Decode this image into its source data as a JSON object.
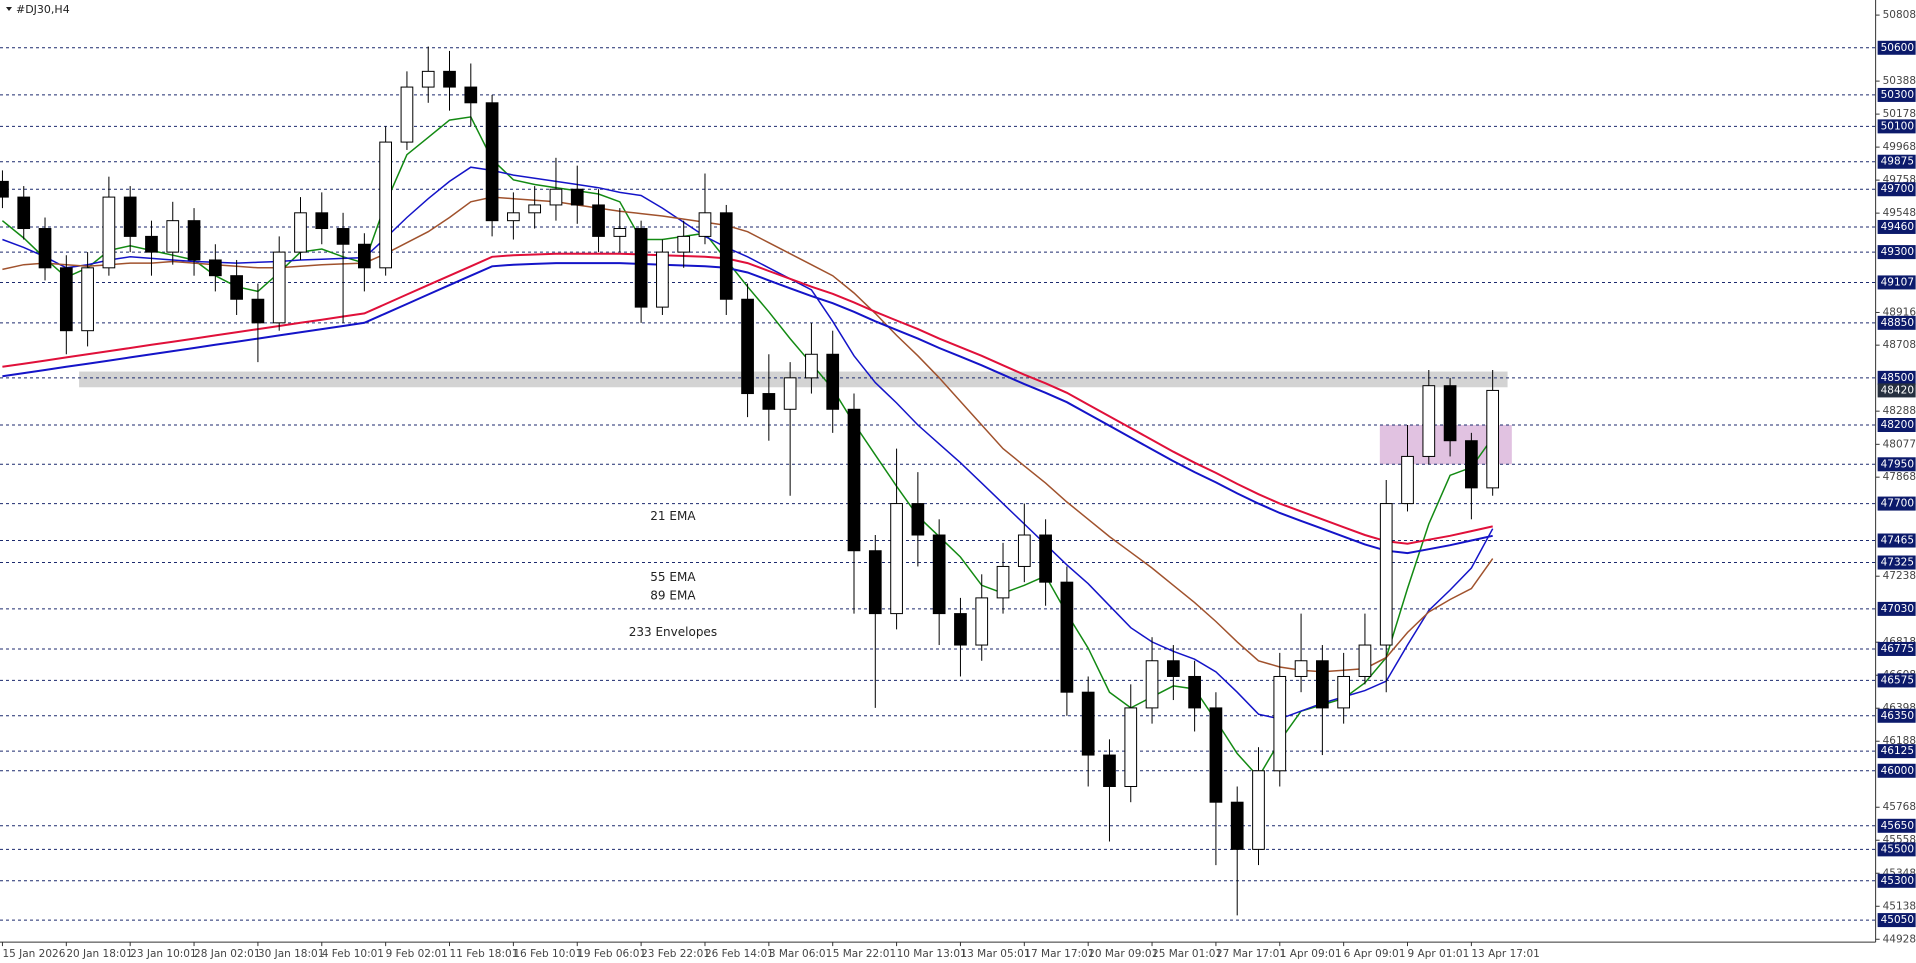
{
  "chart_data": {
    "type": "candlestick",
    "title": "#DJ30,H4",
    "ylim": [
      44910,
      50904
    ],
    "yticks": [
      50808,
      50388,
      50178,
      49968,
      49758,
      49548,
      48916,
      48708,
      48288,
      48077,
      47868,
      47238,
      46818,
      46608,
      46398,
      46188,
      45768,
      45558,
      45348,
      45138,
      44928
    ],
    "levels": [
      50600,
      50300,
      50100,
      49875,
      49700,
      49460,
      49300,
      49107,
      48850,
      48500,
      48200,
      47950,
      47700,
      47465,
      47325,
      47030,
      46775,
      46575,
      46350,
      46125,
      46000,
      45650,
      45500,
      45300,
      45050
    ],
    "last_price": 48420,
    "x_labels": [
      "15 Jan 2026",
      "20 Jan 18:01",
      "23 Jan 10:01",
      "28 Jan 02:01",
      "30 Jan 18:01",
      "4 Feb 10:01",
      "9 Feb 02:01",
      "11 Feb 18:01",
      "16 Feb 10:01",
      "19 Feb 06:01",
      "23 Feb 22:01",
      "26 Feb 14:01",
      "3 Mar 06:01",
      "5 Mar 22:01",
      "10 Mar 13:01",
      "13 Mar 05:01",
      "17 Mar 17:01",
      "20 Mar 09:01",
      "25 Mar 01:01",
      "27 Mar 17:01",
      "1 Apr 09:01",
      "6 Apr 09:01",
      "9 Apr 01:01",
      "13 Apr 17:01"
    ],
    "open": [
      49750,
      49650,
      49450,
      49200,
      48800,
      49200,
      49650,
      49400,
      49300,
      49500,
      49250,
      49150,
      49000,
      48850,
      49300,
      49550,
      49450,
      49350,
      49200,
      50000,
      50350,
      50450,
      50350,
      50250,
      49500,
      49550,
      49600,
      49700,
      49600,
      49400,
      49450,
      48950,
      49300,
      49400,
      49550,
      49000,
      48400,
      48300,
      48500,
      48650,
      48300,
      47400,
      47000,
      47700,
      47500,
      47000,
      46800,
      47100,
      47300,
      47500,
      47200,
      46500,
      46100,
      45900,
      46400,
      46700,
      46600,
      46400,
      45800,
      45500,
      46000,
      46600,
      46700,
      46400,
      46600,
      46800,
      47700,
      48000,
      48450,
      48100,
      47800
    ],
    "high": [
      49820,
      49720,
      49520,
      49280,
      49300,
      49780,
      49720,
      49500,
      49620,
      49580,
      49350,
      49250,
      49100,
      49400,
      49650,
      49680,
      49550,
      49420,
      50100,
      50450,
      50608,
      50580,
      50500,
      50300,
      49680,
      49720,
      49900,
      49850,
      49700,
      49580,
      49500,
      49380,
      49500,
      49800,
      49600,
      49100,
      48650,
      48600,
      48850,
      48800,
      48400,
      47500,
      48050,
      47900,
      47600,
      47100,
      47250,
      47450,
      47700,
      47600,
      47300,
      46600,
      46200,
      46550,
      46850,
      46800,
      46700,
      46500,
      45900,
      46150,
      46750,
      47000,
      46800,
      46750,
      47000,
      47850,
      48200,
      48550,
      48500,
      48150,
      48550
    ],
    "low": [
      49580,
      49380,
      49120,
      48650,
      48700,
      49150,
      49300,
      49150,
      49220,
      49150,
      49050,
      48900,
      48600,
      48800,
      49250,
      49350,
      48850,
      49050,
      49150,
      49950,
      50250,
      50200,
      50100,
      49400,
      49380,
      49450,
      49500,
      49480,
      49300,
      49300,
      48850,
      48900,
      49200,
      49350,
      48900,
      48250,
      48100,
      47750,
      48400,
      48150,
      47000,
      46400,
      46900,
      47300,
      46800,
      46600,
      46700,
      47000,
      47200,
      47050,
      46350,
      45900,
      45550,
      45800,
      46300,
      46450,
      46250,
      45400,
      45080,
      45400,
      45900,
      46500,
      46100,
      46300,
      46550,
      46500,
      47650,
      47950,
      48000,
      47600,
      47750
    ],
    "close": [
      49650,
      49450,
      49200,
      48800,
      49200,
      49650,
      49400,
      49300,
      49500,
      49250,
      49150,
      49000,
      48850,
      49300,
      49550,
      49450,
      49350,
      49200,
      50000,
      50350,
      50450,
      50350,
      50250,
      49500,
      49550,
      49600,
      49700,
      49600,
      49400,
      49450,
      48950,
      49300,
      49400,
      49550,
      49000,
      48400,
      48300,
      48500,
      48650,
      48300,
      47400,
      47000,
      47700,
      47500,
      47000,
      46800,
      47100,
      47300,
      47500,
      47200,
      46500,
      46100,
      45900,
      46400,
      46700,
      46600,
      46400,
      45800,
      45500,
      46000,
      46600,
      46700,
      46400,
      46600,
      46800,
      47700,
      48000,
      48450,
      48100,
      47800,
      48420
    ],
    "series": [
      {
        "name": "21 EMA",
        "color": "#138a13",
        "values": [
          49500,
          49390,
          49260,
          49140,
          49200,
          49310,
          49340,
          49310,
          49280,
          49250,
          49150,
          49080,
          49050,
          49170,
          49300,
          49320,
          49270,
          49230,
          49610,
          49920,
          50030,
          50140,
          50160,
          49890,
          49760,
          49730,
          49710,
          49690,
          49670,
          49620,
          49380,
          49380,
          49400,
          49420,
          49250,
          49080,
          48920,
          48750,
          48590,
          48430,
          48210,
          48010,
          47810,
          47620,
          47490,
          47360,
          47180,
          47130,
          47180,
          47240,
          47000,
          46780,
          46500,
          46400,
          46470,
          46540,
          46520,
          46320,
          46110,
          45960,
          46190,
          46380,
          46420,
          46460,
          46560,
          46720,
          47160,
          47570,
          47880,
          47930,
          48120
        ]
      },
      {
        "name": "55 EMA",
        "color": "#1414c8",
        "values": [
          49380,
          49330,
          49270,
          49200,
          49220,
          49250,
          49270,
          49260,
          49250,
          49240,
          49235,
          49230,
          49235,
          49240,
          49250,
          49255,
          49260,
          49265,
          49390,
          49520,
          49640,
          49750,
          49840,
          49820,
          49790,
          49770,
          49750,
          49730,
          49710,
          49680,
          49660,
          49580,
          49490,
          49400,
          49330,
          49270,
          49200,
          49130,
          49060,
          48860,
          48640,
          48470,
          48340,
          48200,
          48080,
          47960,
          47830,
          47700,
          47570,
          47440,
          47310,
          47190,
          47050,
          46910,
          46820,
          46760,
          46710,
          46630,
          46500,
          46360,
          46330,
          46380,
          46430,
          46470,
          46510,
          46570,
          46800,
          47020,
          47150,
          47290,
          47540
        ]
      },
      {
        "name": "89 EMA",
        "color": "#a0522d",
        "values": [
          49190,
          49220,
          49230,
          49220,
          49210,
          49220,
          49230,
          49230,
          49240,
          49230,
          49220,
          49210,
          49200,
          49200,
          49210,
          49220,
          49225,
          49230,
          49290,
          49360,
          49430,
          49520,
          49620,
          49650,
          49640,
          49630,
          49620,
          49600,
          49580,
          49560,
          49545,
          49530,
          49510,
          49490,
          49470,
          49430,
          49360,
          49290,
          49220,
          49150,
          49040,
          48910,
          48770,
          48640,
          48500,
          48350,
          48200,
          48050,
          47940,
          47830,
          47710,
          47600,
          47490,
          47390,
          47290,
          47180,
          47070,
          46950,
          46820,
          46700,
          46660,
          46640,
          46630,
          46640,
          46650,
          46720,
          46880,
          47010,
          47090,
          47160,
          47350
        ]
      },
      {
        "name": "233 Envelopes",
        "color": "#e0103a",
        "lower_color": "#1414c8",
        "values": [
          48570,
          48590,
          48610,
          48630,
          48650,
          48670,
          48690,
          48710,
          48730,
          48750,
          48770,
          48790,
          48810,
          48830,
          48850,
          48870,
          48890,
          48910,
          48970,
          49030,
          49090,
          49150,
          49210,
          49270,
          49280,
          49285,
          49290,
          49290,
          49290,
          49290,
          49285,
          49280,
          49275,
          49270,
          49260,
          49230,
          49180,
          49130,
          49080,
          49035,
          48980,
          48920,
          48865,
          48810,
          48750,
          48695,
          48640,
          48580,
          48520,
          48465,
          48405,
          48330,
          48255,
          48180,
          48105,
          48030,
          47960,
          47895,
          47825,
          47760,
          47700,
          47650,
          47600,
          47550,
          47500,
          47460,
          47445,
          47470,
          47495,
          47525,
          47555
        ],
        "lower": [
          48510,
          48530,
          48550,
          48570,
          48590,
          48610,
          48630,
          48650,
          48670,
          48690,
          48710,
          48730,
          48750,
          48770,
          48790,
          48810,
          48830,
          48850,
          48910,
          48970,
          49030,
          49090,
          49150,
          49210,
          49220,
          49225,
          49230,
          49230,
          49230,
          49230,
          49225,
          49220,
          49215,
          49210,
          49200,
          49170,
          49120,
          49070,
          49020,
          48975,
          48920,
          48860,
          48805,
          48750,
          48690,
          48635,
          48580,
          48520,
          48460,
          48405,
          48345,
          48270,
          48195,
          48120,
          48045,
          47970,
          47900,
          47835,
          47765,
          47700,
          47640,
          47590,
          47540,
          47490,
          47440,
          47400,
          47385,
          47410,
          47435,
          47465,
          47495
        ]
      }
    ],
    "zones": [
      {
        "from": 3.6,
        "to": 70.7,
        "ylim": [
          48440,
          48540
        ],
        "color": "#c8c8c8"
      },
      {
        "from": 64.7,
        "to": 70.9,
        "ylim": [
          47950,
          48200
        ],
        "color": "#d9b3d9"
      }
    ]
  }
}
